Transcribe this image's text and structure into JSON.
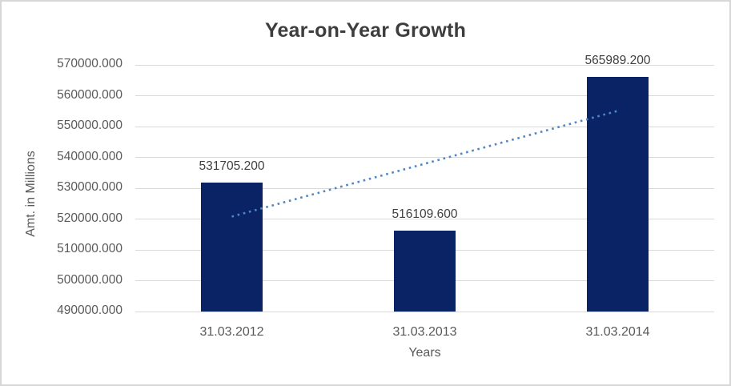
{
  "chart_data": {
    "type": "bar",
    "title": "Year-on-Year Growth",
    "xlabel": "Years",
    "ylabel": "Amt. in Millions",
    "categories": [
      "31.03.2012",
      "31.03.2013",
      "31.03.2014"
    ],
    "values": [
      531705.2,
      516109.6,
      565989.2
    ],
    "data_labels": [
      "531705.200",
      "516109.600",
      "565989.200"
    ],
    "ylim": [
      490000,
      570000
    ],
    "ytick_step": 10000,
    "ytick_labels": [
      "570000.000",
      "560000.000",
      "550000.000",
      "540000.000",
      "530000.000",
      "520000.000",
      "510000.000",
      "500000.000",
      "490000.000"
    ],
    "grid": true,
    "legend": "none",
    "trendline": {
      "type": "linear",
      "style": "dotted"
    },
    "colors": {
      "bar": "#0a2365",
      "trendline": "#4e86c6",
      "gridline": "#d9d9d9",
      "frame_border": "#d7d7d7",
      "title_text": "#3d3d3d",
      "data_label_text": "#404040",
      "axis_text": "#595959",
      "background": "#ffffff"
    }
  }
}
